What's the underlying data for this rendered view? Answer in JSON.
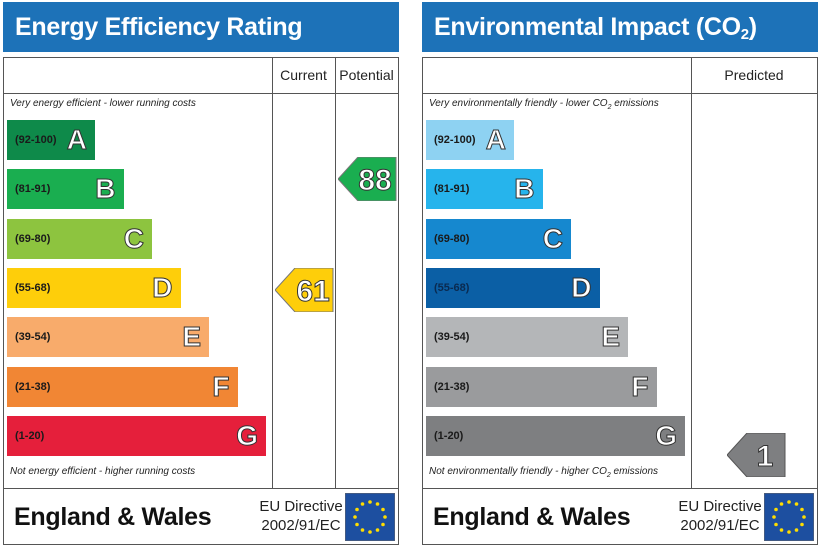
{
  "energy": {
    "title": "Energy Efficiency Rating",
    "columns": [
      "Current",
      "Potential"
    ],
    "top_caption": "Very energy efficient - lower running costs",
    "bottom_caption": "Not energy efficient - higher running costs",
    "bands": [
      {
        "range": "(92-100)",
        "letter": "A",
        "color": "#0e8a4a"
      },
      {
        "range": "(81-91)",
        "letter": "B",
        "color": "#1aae50"
      },
      {
        "range": "(69-80)",
        "letter": "C",
        "color": "#8dc43f"
      },
      {
        "range": "(55-68)",
        "letter": "D",
        "color": "#fece0a"
      },
      {
        "range": "(39-54)",
        "letter": "E",
        "color": "#f8ab6b"
      },
      {
        "range": "(21-38)",
        "letter": "F",
        "color": "#f18634"
      },
      {
        "range": "(1-20)",
        "letter": "G",
        "color": "#e51f3b"
      }
    ],
    "current": {
      "value": "61",
      "color": "#fece0a"
    },
    "potential": {
      "value": "88",
      "color": "#1aae50"
    },
    "footer": {
      "country": "England & Wales",
      "directive_line1": "EU Directive",
      "directive_line2": "2002/91/EC"
    }
  },
  "environment": {
    "title_pre": "Environmental Impact (CO",
    "title_sub": "2",
    "title_post": ") Rating",
    "columns": [
      "Predicted"
    ],
    "top_caption_pre": "Very environmentally friendly - lower CO",
    "top_caption_sub": "2",
    "top_caption_post": " emissions",
    "bottom_caption_pre": "Not environmentally friendly - higher CO",
    "bottom_caption_sub": "2",
    "bottom_caption_post": " emissions",
    "bands": [
      {
        "range": "(92-100)",
        "letter": "A",
        "color": "#8ed2f2"
      },
      {
        "range": "(81-91)",
        "letter": "B",
        "color": "#26b4ec"
      },
      {
        "range": "(69-80)",
        "letter": "C",
        "color": "#1688cf"
      },
      {
        "range": "(55-68)",
        "letter": "D",
        "color": "#0b5fa5"
      },
      {
        "range": "(39-54)",
        "letter": "E",
        "color": "#b4b6b8"
      },
      {
        "range": "(21-38)",
        "letter": "F",
        "color": "#9a9b9d"
      },
      {
        "range": "(1-20)",
        "letter": "G",
        "color": "#7e7f81"
      }
    ],
    "predicted": {
      "value": "1",
      "color": "#7e7f81"
    },
    "footer": {
      "country": "England & Wales",
      "directive_line1": "EU Directive",
      "directive_line2": "2002/91/EC"
    }
  }
}
